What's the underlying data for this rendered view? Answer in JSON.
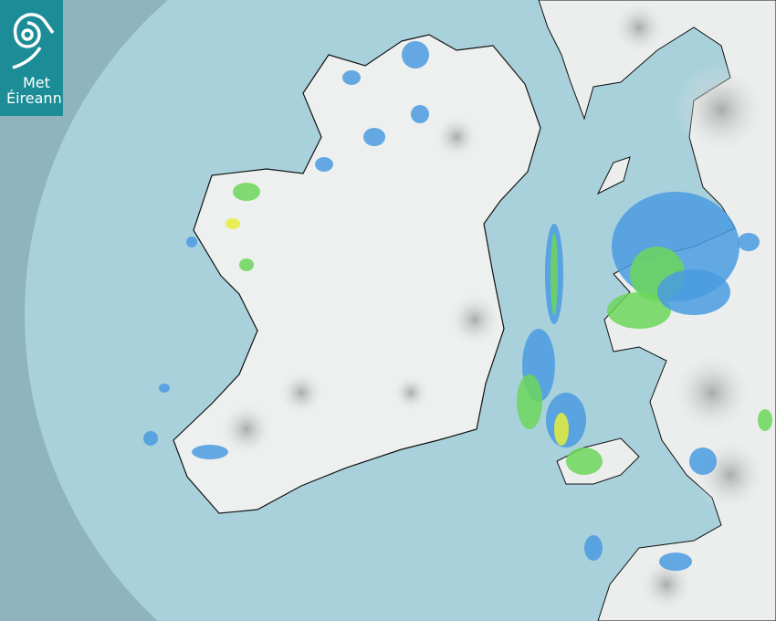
{
  "logo": {
    "line1": "Met",
    "line2": "Éireann"
  },
  "colors": {
    "outside_coverage": "#8fb4be",
    "radar_coverage": "#a9d1dc",
    "land": "#eef0ef",
    "highland": "#b9bcbb",
    "light_rain": "#4a9be0",
    "moderate_rain": "#6cd65a",
    "heavy_rain": "#e6ef3a",
    "logo_bg": "#1c8c97"
  },
  "icons": {
    "logo": "met-eireann-spiral-logo"
  }
}
